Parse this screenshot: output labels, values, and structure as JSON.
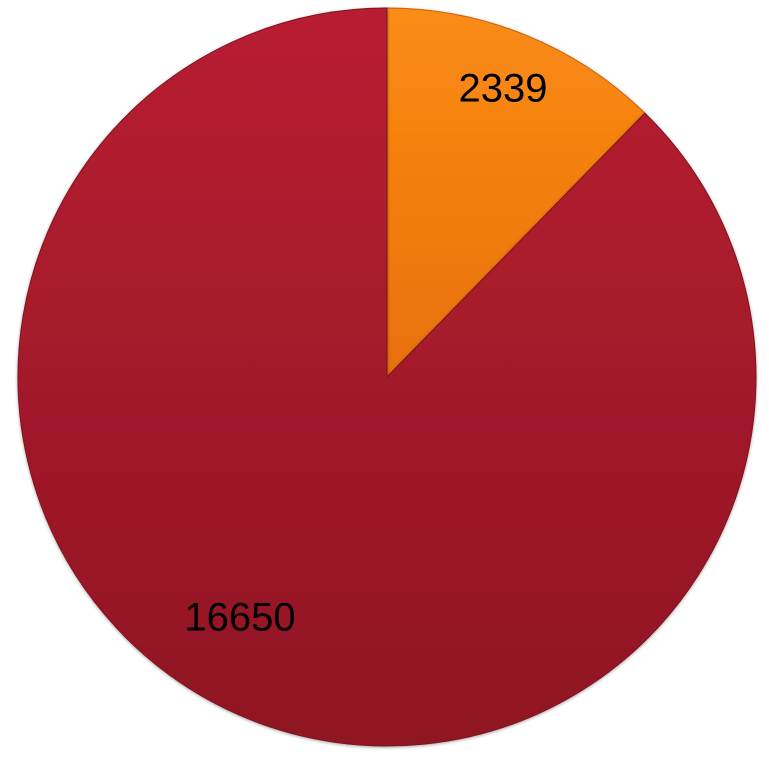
{
  "chart_data": {
    "type": "pie",
    "title": "",
    "values": [
      2339,
      16650
    ],
    "labels": [
      "2339",
      "16650"
    ],
    "colors": [
      "#f57f0c",
      "#a51a2b"
    ],
    "start": "12 o'clock",
    "direction": "clockwise"
  }
}
